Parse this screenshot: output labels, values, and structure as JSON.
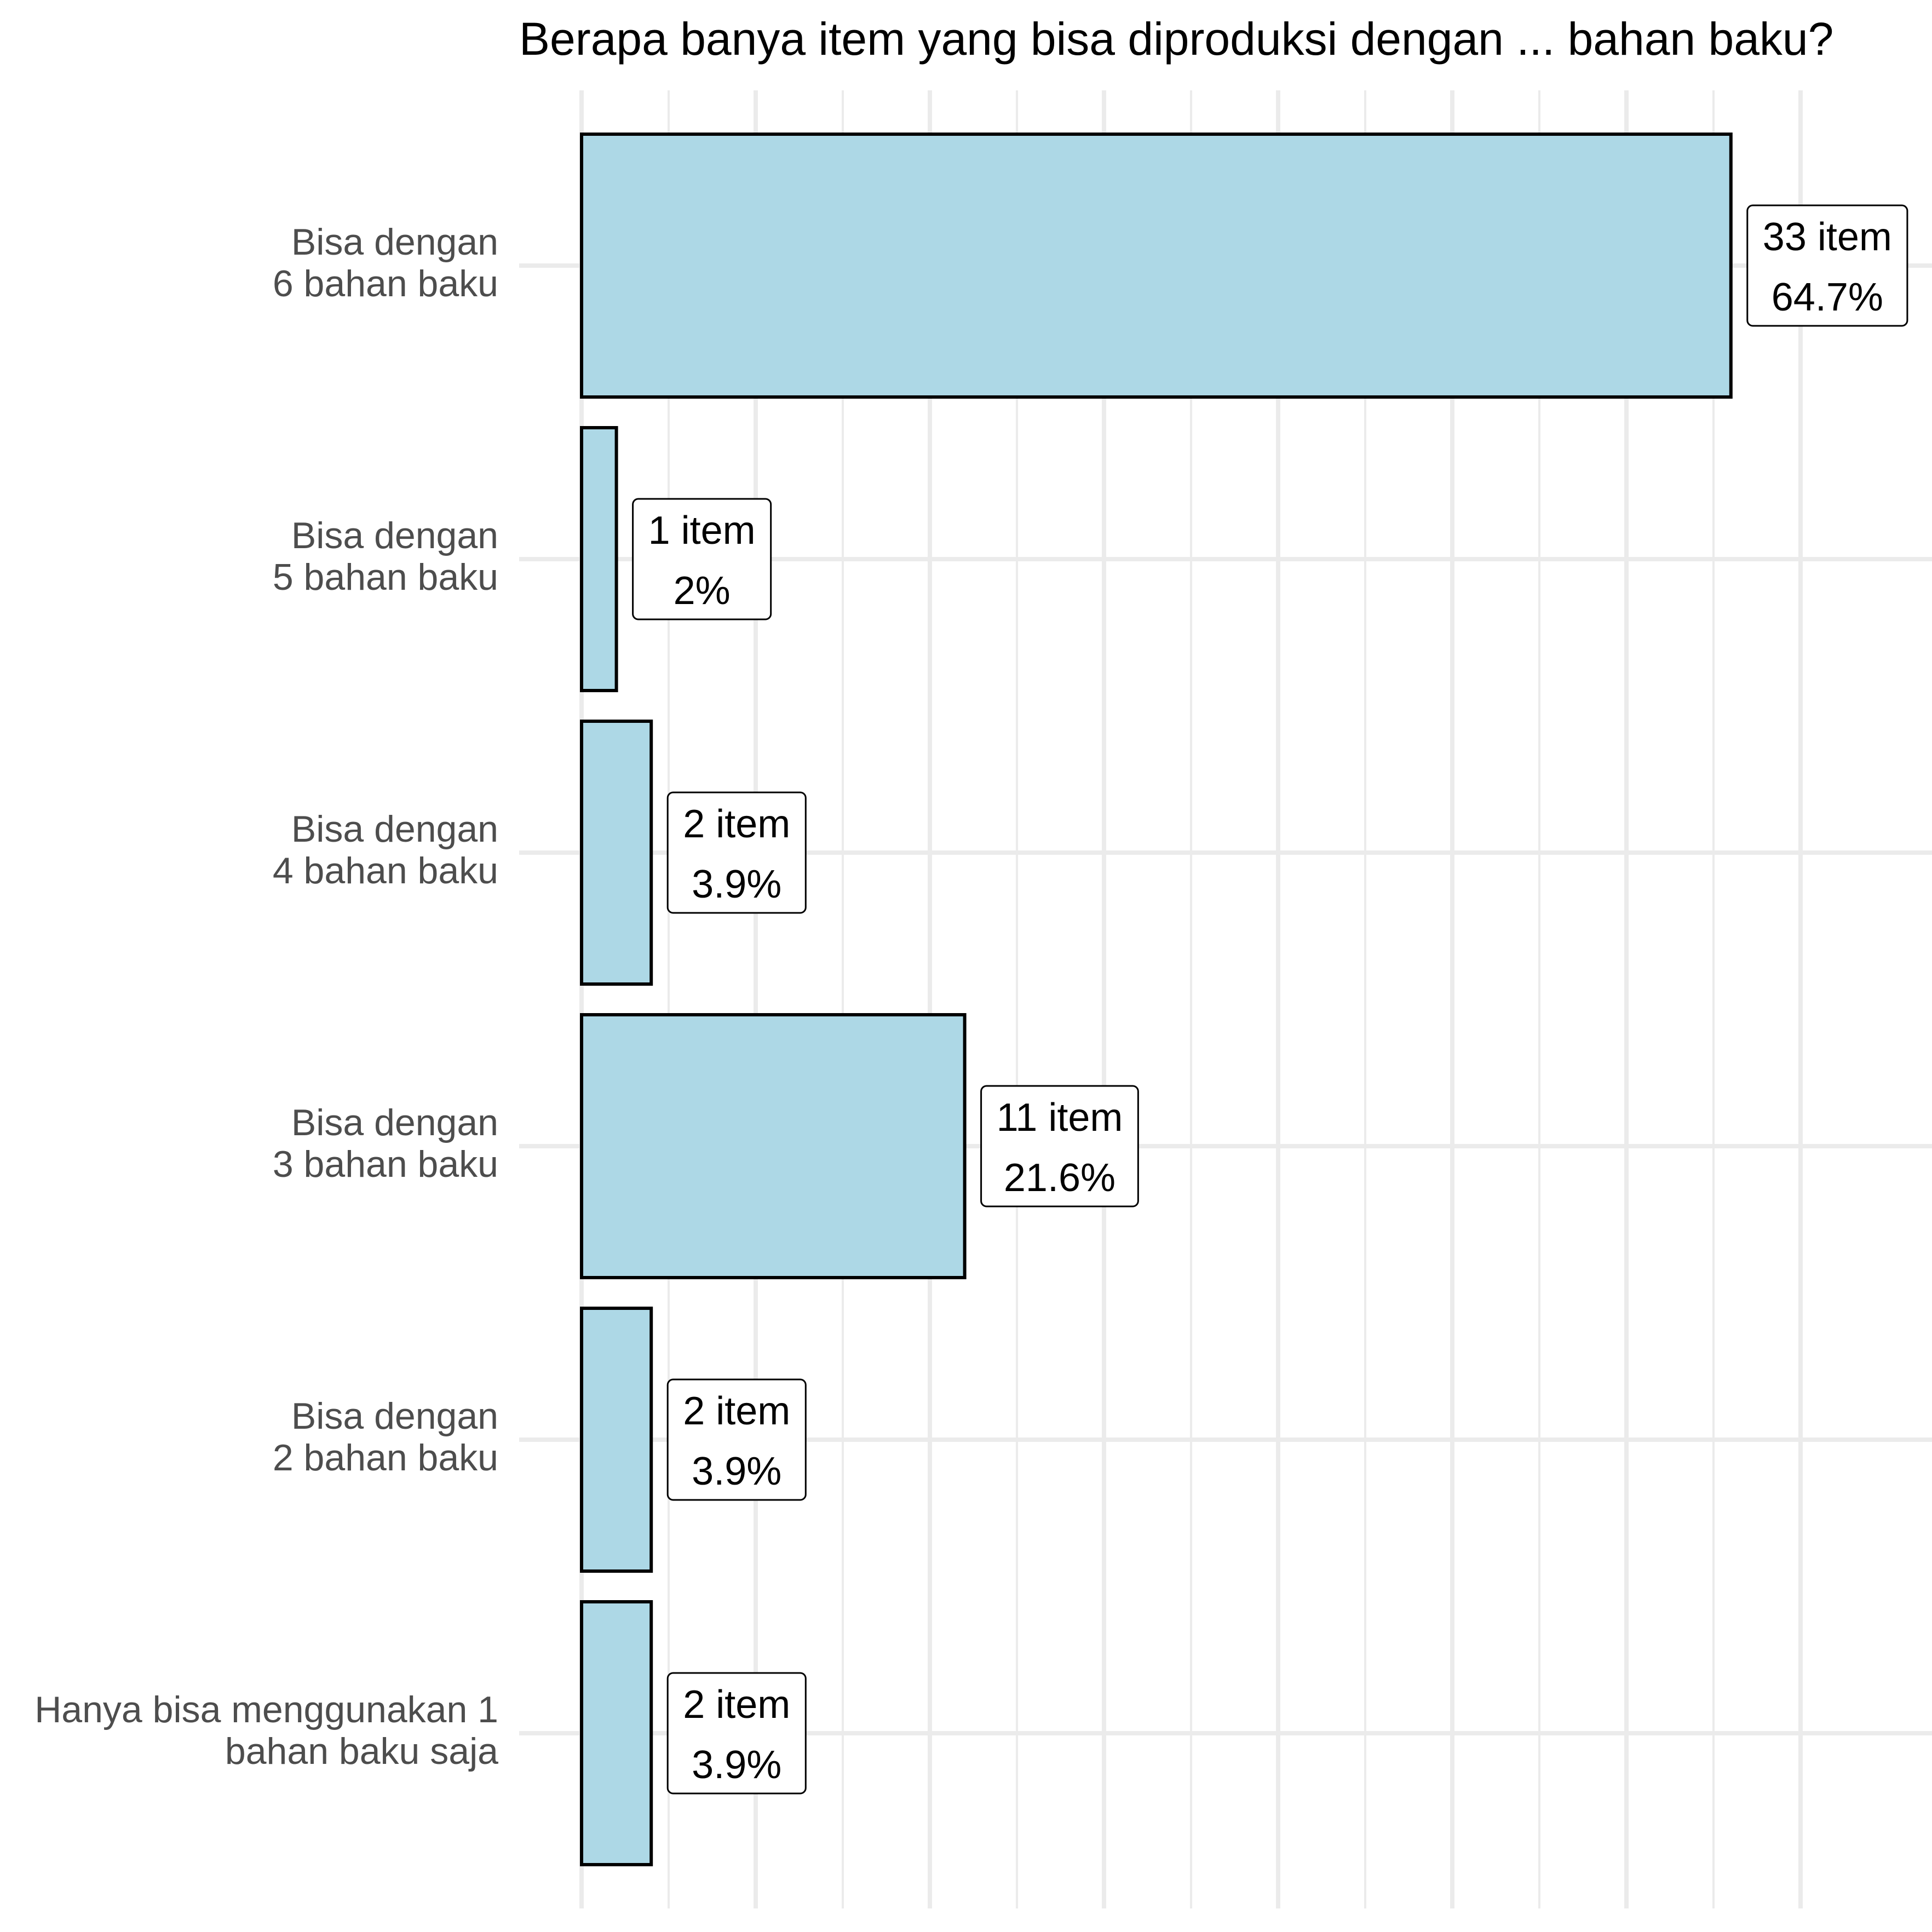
{
  "chart_data": {
    "type": "bar",
    "orientation": "horizontal",
    "title": "Berapa banya item yang bisa diproduksi dengan ... bahan baku?",
    "xlabel": "",
    "ylabel": "",
    "xlim": [
      0,
      35
    ],
    "grid": true,
    "legend": "none",
    "bar_fill": "#add8e6",
    "bar_stroke": "#000000",
    "categories": [
      [
        "Bisa dengan",
        "6 bahan baku"
      ],
      [
        "Bisa dengan",
        "5 bahan baku"
      ],
      [
        "Bisa dengan",
        "4 bahan baku"
      ],
      [
        "Bisa dengan",
        "3 bahan baku"
      ],
      [
        "Bisa dengan",
        "2 bahan baku"
      ],
      [
        "Hanya bisa menggunakan 1",
        "bahan baku saja"
      ]
    ],
    "values": [
      33,
      1,
      2,
      11,
      2,
      2
    ],
    "data_labels": [
      [
        "33 item",
        "64.7%"
      ],
      [
        "1 item",
        "2%"
      ],
      [
        "2 item",
        "3.9%"
      ],
      [
        "11 item",
        "21.6%"
      ],
      [
        "2 item",
        "3.9%"
      ],
      [
        "2 item",
        "3.9%"
      ]
    ]
  }
}
